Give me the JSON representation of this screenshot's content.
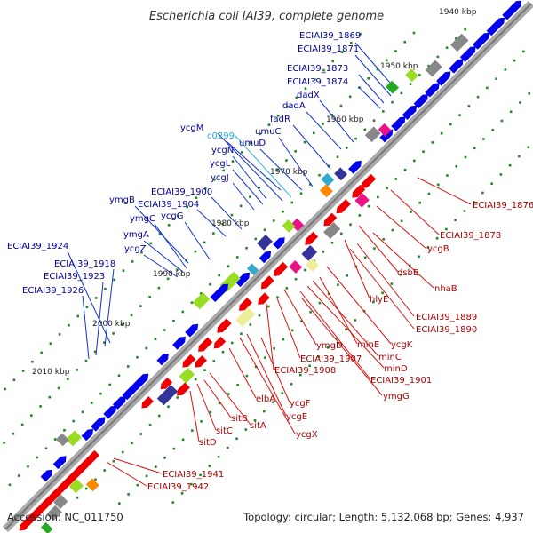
{
  "title": "Escherichia coli IAI39, complete genome",
  "footer": {
    "accession": "Accession: NC_011750",
    "topology": "Topology: circular; Length: 5,132,068 bp; Genes: 4,937"
  },
  "colors": {
    "forward": "#0000ff",
    "reverse": "#ff0000",
    "label_cyan": "#22aadd",
    "backbone": "#999999"
  },
  "kbp_ticks": [
    "1940 kbp",
    "1950 kbp",
    "1960 kbp",
    "1970 kbp",
    "1980 kbp",
    "1990 kbp",
    "2000 kbp",
    "2010 kbp"
  ],
  "forward_labels": [
    "ECIAI39_1869",
    "ECIAI39_1871",
    "ECIAI39_1873",
    "ECIAI39_1874",
    "dadX",
    "dadA",
    "fadR",
    "umuC",
    "umuD",
    "ycgM",
    "c0299",
    "ycgN",
    "ycgL",
    "ycgJ",
    "ECIAI39_1900",
    "ECIAI39_1904",
    "ymgB",
    "ymgC",
    "ycgG",
    "ymgA",
    "ycgZ",
    "ECIAI39_1924",
    "ECIAI39_1918",
    "ECIAI39_1923",
    "ECIAI39_1926"
  ],
  "reverse_labels": [
    "ECIAI39_1876",
    "ECIAI39_1878",
    "ycgB",
    "dsbB",
    "nhaB",
    "hlyE",
    "ECIAI39_1889",
    "ECIAI39_1890",
    "ycgK",
    "minE",
    "minC",
    "minD",
    "ECIAI39_1901",
    "ymgG",
    "ymgD",
    "ECIAI39_1907",
    "ECIAI39_1908",
    "ycgF",
    "ycgE",
    "ycgX",
    "elbA",
    "sitA",
    "sitB",
    "sitC",
    "sitD",
    "ECIAI39_1941",
    "ECIAI39_1942"
  ]
}
